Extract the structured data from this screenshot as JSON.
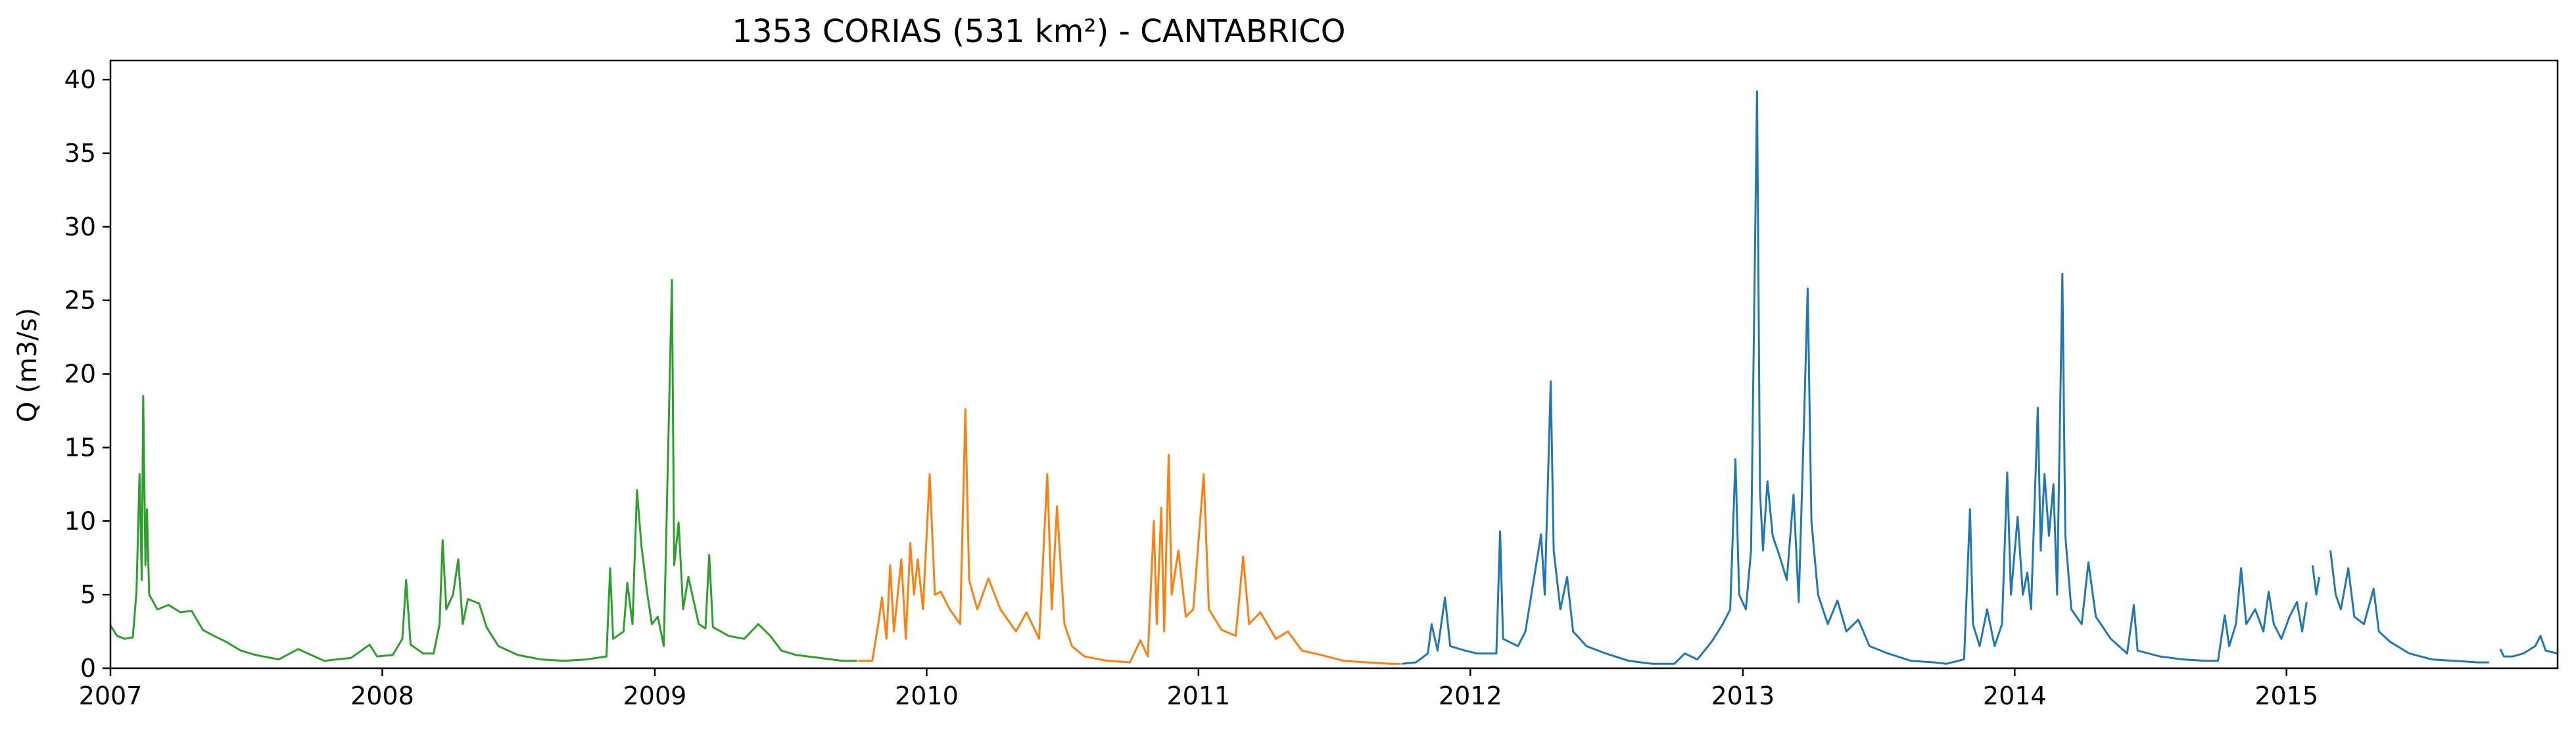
{
  "chart_data": {
    "type": "line",
    "title": "1353 CORIAS (531 km²) - CANTABRICO",
    "xlabel": "",
    "ylabel": "Q (m3/s)",
    "xlim": [
      "2007-01-01",
      "2015-12-31"
    ],
    "ylim": [
      0,
      41.3
    ],
    "x_ticks": [
      "2007",
      "2008",
      "2009",
      "2010",
      "2011",
      "2012",
      "2013",
      "2014",
      "2015"
    ],
    "y_ticks": [
      0,
      5,
      10,
      15,
      20,
      25,
      30,
      35,
      40
    ],
    "grid": false,
    "legend": "none",
    "colors": {
      "green": "#2ca02c",
      "orange": "#ff7f0e",
      "blue": "#1f77b4"
    },
    "series": [
      {
        "color": "green",
        "points": [
          [
            "2007-01-01",
            2.9
          ],
          [
            "2007-01-10",
            2.2
          ],
          [
            "2007-01-20",
            2.0
          ],
          [
            "2007-01-31",
            2.1
          ],
          [
            "2007-02-05",
            5.2
          ],
          [
            "2007-02-09",
            13.2
          ],
          [
            "2007-02-12",
            6.0
          ],
          [
            "2007-02-14",
            18.5
          ],
          [
            "2007-02-17",
            7.0
          ],
          [
            "2007-02-19",
            10.8
          ],
          [
            "2007-02-22",
            5.0
          ],
          [
            "2007-03-05",
            4.0
          ],
          [
            "2007-03-20",
            4.3
          ],
          [
            "2007-04-05",
            3.8
          ],
          [
            "2007-04-20",
            3.9
          ],
          [
            "2007-05-05",
            2.6
          ],
          [
            "2007-05-20",
            2.2
          ],
          [
            "2007-06-05",
            1.8
          ],
          [
            "2007-06-25",
            1.2
          ],
          [
            "2007-07-15",
            0.9
          ],
          [
            "2007-08-15",
            0.6
          ],
          [
            "2007-09-10",
            1.3
          ],
          [
            "2007-10-15",
            0.5
          ],
          [
            "2007-11-20",
            0.7
          ],
          [
            "2007-12-15",
            1.6
          ],
          [
            "2007-12-25",
            0.8
          ],
          [
            "2008-01-15",
            0.9
          ],
          [
            "2008-01-28",
            2.0
          ],
          [
            "2008-02-02",
            6.0
          ],
          [
            "2008-02-08",
            1.6
          ],
          [
            "2008-02-25",
            1.0
          ],
          [
            "2008-03-10",
            1.0
          ],
          [
            "2008-03-18",
            3.0
          ],
          [
            "2008-03-22",
            8.7
          ],
          [
            "2008-03-27",
            4.0
          ],
          [
            "2008-04-05",
            5.0
          ],
          [
            "2008-04-12",
            7.4
          ],
          [
            "2008-04-18",
            3.0
          ],
          [
            "2008-04-25",
            4.7
          ],
          [
            "2008-05-10",
            4.4
          ],
          [
            "2008-05-20",
            2.8
          ],
          [
            "2008-06-05",
            1.5
          ],
          [
            "2008-07-01",
            0.9
          ],
          [
            "2008-08-01",
            0.6
          ],
          [
            "2008-09-01",
            0.5
          ],
          [
            "2008-10-01",
            0.6
          ],
          [
            "2008-10-28",
            0.8
          ],
          [
            "2008-11-02",
            6.8
          ],
          [
            "2008-11-06",
            2.0
          ],
          [
            "2008-11-20",
            2.5
          ],
          [
            "2008-11-25",
            5.8
          ],
          [
            "2008-12-02",
            3.0
          ],
          [
            "2008-12-08",
            12.1
          ],
          [
            "2008-12-14",
            8.3
          ],
          [
            "2008-12-22",
            5.0
          ],
          [
            "2008-12-28",
            3.0
          ],
          [
            "2009-01-05",
            3.5
          ],
          [
            "2009-01-13",
            1.5
          ],
          [
            "2009-01-24",
            26.4
          ],
          [
            "2009-01-27",
            7.0
          ],
          [
            "2009-02-02",
            9.9
          ],
          [
            "2009-02-08",
            4.0
          ],
          [
            "2009-02-15",
            6.2
          ],
          [
            "2009-03-01",
            3.0
          ],
          [
            "2009-03-10",
            2.7
          ],
          [
            "2009-03-15",
            7.7
          ],
          [
            "2009-03-20",
            2.8
          ],
          [
            "2009-04-10",
            2.2
          ],
          [
            "2009-05-01",
            2.0
          ],
          [
            "2009-05-20",
            3.0
          ],
          [
            "2009-06-05",
            2.2
          ],
          [
            "2009-06-20",
            1.2
          ],
          [
            "2009-07-10",
            0.9
          ],
          [
            "2009-08-10",
            0.7
          ],
          [
            "2009-09-10",
            0.5
          ],
          [
            "2009-09-30",
            0.5
          ]
        ]
      },
      {
        "color": "orange",
        "points": [
          [
            "2009-10-01",
            0.5
          ],
          [
            "2009-10-20",
            0.5
          ],
          [
            "2009-10-28",
            3.0
          ],
          [
            "2009-11-02",
            4.8
          ],
          [
            "2009-11-08",
            2.0
          ],
          [
            "2009-11-13",
            7.0
          ],
          [
            "2009-11-18",
            2.5
          ],
          [
            "2009-11-28",
            7.4
          ],
          [
            "2009-12-04",
            2.0
          ],
          [
            "2009-12-10",
            8.5
          ],
          [
            "2009-12-15",
            5.0
          ],
          [
            "2009-12-20",
            7.4
          ],
          [
            "2009-12-27",
            4.0
          ],
          [
            "2010-01-05",
            13.2
          ],
          [
            "2010-01-12",
            5.0
          ],
          [
            "2010-01-20",
            5.2
          ],
          [
            "2010-02-01",
            4.0
          ],
          [
            "2010-02-15",
            3.0
          ],
          [
            "2010-02-22",
            17.6
          ],
          [
            "2010-02-27",
            6.0
          ],
          [
            "2010-03-10",
            4.0
          ],
          [
            "2010-03-25",
            6.1
          ],
          [
            "2010-04-10",
            4.0
          ],
          [
            "2010-05-01",
            2.5
          ],
          [
            "2010-05-15",
            3.8
          ],
          [
            "2010-06-01",
            2.0
          ],
          [
            "2010-06-12",
            13.2
          ],
          [
            "2010-06-18",
            4.0
          ],
          [
            "2010-06-25",
            11.0
          ],
          [
            "2010-07-05",
            3.0
          ],
          [
            "2010-07-15",
            1.5
          ],
          [
            "2010-08-01",
            0.8
          ],
          [
            "2010-09-01",
            0.5
          ],
          [
            "2010-10-01",
            0.4
          ],
          [
            "2010-10-15",
            1.9
          ],
          [
            "2010-10-25",
            0.8
          ],
          [
            "2010-11-02",
            10.0
          ],
          [
            "2010-11-06",
            3.0
          ],
          [
            "2010-11-12",
            10.9
          ],
          [
            "2010-11-16",
            2.5
          ],
          [
            "2010-11-22",
            14.5
          ],
          [
            "2010-11-26",
            5.0
          ],
          [
            "2010-12-05",
            8.0
          ],
          [
            "2010-12-15",
            3.5
          ],
          [
            "2010-12-25",
            4.0
          ],
          [
            "2011-01-08",
            13.2
          ],
          [
            "2011-01-15",
            4.0
          ],
          [
            "2011-02-01",
            2.6
          ],
          [
            "2011-02-20",
            2.2
          ],
          [
            "2011-03-02",
            7.6
          ],
          [
            "2011-03-10",
            3.0
          ],
          [
            "2011-03-25",
            3.8
          ],
          [
            "2011-04-15",
            2.0
          ],
          [
            "2011-05-01",
            2.5
          ],
          [
            "2011-05-20",
            1.2
          ],
          [
            "2011-06-15",
            0.9
          ],
          [
            "2011-07-15",
            0.5
          ],
          [
            "2011-08-15",
            0.4
          ],
          [
            "2011-09-15",
            0.3
          ],
          [
            "2011-09-30",
            0.3
          ]
        ]
      },
      {
        "color": "blue",
        "points": [
          [
            "2011-10-01",
            0.3
          ],
          [
            "2011-10-20",
            0.4
          ],
          [
            "2011-11-05",
            1.0
          ],
          [
            "2011-11-10",
            3.0
          ],
          [
            "2011-11-18",
            1.2
          ],
          [
            "2011-11-28",
            4.8
          ],
          [
            "2011-12-05",
            1.5
          ],
          [
            "2011-12-25",
            1.2
          ],
          [
            "2012-01-10",
            1.0
          ],
          [
            "2012-02-05",
            1.0
          ],
          [
            "2012-02-10",
            9.3
          ],
          [
            "2012-02-14",
            2.0
          ],
          [
            "2012-03-05",
            1.5
          ],
          [
            "2012-03-15",
            2.5
          ],
          [
            "2012-04-05",
            9.1
          ],
          [
            "2012-04-10",
            5.0
          ],
          [
            "2012-04-18",
            19.5
          ],
          [
            "2012-04-22",
            8.0
          ],
          [
            "2012-05-01",
            4.0
          ],
          [
            "2012-05-10",
            6.2
          ],
          [
            "2012-05-18",
            2.5
          ],
          [
            "2012-06-05",
            1.5
          ],
          [
            "2012-07-01",
            1.0
          ],
          [
            "2012-08-01",
            0.5
          ],
          [
            "2012-09-01",
            0.3
          ],
          [
            "2012-10-01",
            0.3
          ],
          [
            "2012-10-15",
            1.0
          ],
          [
            "2012-11-01",
            0.6
          ],
          [
            "2012-11-20",
            1.8
          ],
          [
            "2012-12-05",
            3.0
          ],
          [
            "2012-12-15",
            4.0
          ],
          [
            "2012-12-22",
            14.2
          ],
          [
            "2012-12-27",
            5.0
          ],
          [
            "2013-01-05",
            4.0
          ],
          [
            "2013-01-12",
            8.0
          ],
          [
            "2013-01-20",
            39.2
          ],
          [
            "2013-01-24",
            12.0
          ],
          [
            "2013-01-28",
            8.0
          ],
          [
            "2013-02-03",
            12.7
          ],
          [
            "2013-02-10",
            9.0
          ],
          [
            "2013-02-20",
            7.5
          ],
          [
            "2013-03-01",
            6.0
          ],
          [
            "2013-03-10",
            11.8
          ],
          [
            "2013-03-17",
            4.5
          ],
          [
            "2013-03-24",
            16.5
          ],
          [
            "2013-03-29",
            25.8
          ],
          [
            "2013-04-03",
            10.0
          ],
          [
            "2013-04-12",
            5.0
          ],
          [
            "2013-04-25",
            3.0
          ],
          [
            "2013-05-08",
            4.6
          ],
          [
            "2013-05-20",
            2.5
          ],
          [
            "2013-06-05",
            3.3
          ],
          [
            "2013-06-20",
            1.5
          ],
          [
            "2013-07-15",
            1.0
          ],
          [
            "2013-08-15",
            0.5
          ],
          [
            "2013-09-15",
            0.4
          ],
          [
            "2013-10-01",
            0.3
          ],
          [
            "2013-10-25",
            0.6
          ],
          [
            "2013-11-02",
            10.8
          ],
          [
            "2013-11-06",
            3.0
          ],
          [
            "2013-11-15",
            1.5
          ],
          [
            "2013-11-25",
            4.0
          ],
          [
            "2013-12-05",
            1.5
          ],
          [
            "2013-12-15",
            3.0
          ],
          [
            "2013-12-22",
            13.3
          ],
          [
            "2013-12-27",
            5.0
          ],
          [
            "2014-01-05",
            10.3
          ],
          [
            "2014-01-12",
            5.0
          ],
          [
            "2014-01-18",
            6.5
          ],
          [
            "2014-01-23",
            4.0
          ],
          [
            "2014-02-01",
            17.7
          ],
          [
            "2014-02-05",
            8.0
          ],
          [
            "2014-02-10",
            13.2
          ],
          [
            "2014-02-16",
            9.0
          ],
          [
            "2014-02-22",
            12.5
          ],
          [
            "2014-02-27",
            5.0
          ],
          [
            "2014-03-06",
            26.8
          ],
          [
            "2014-03-10",
            9.0
          ],
          [
            "2014-03-18",
            4.0
          ],
          [
            "2014-04-01",
            3.0
          ],
          [
            "2014-04-10",
            7.2
          ],
          [
            "2014-04-20",
            3.5
          ],
          [
            "2014-05-10",
            2.0
          ],
          [
            "2014-06-01",
            1.0
          ],
          [
            "2014-06-10",
            4.3
          ],
          [
            "2014-06-15",
            1.2
          ],
          [
            "2014-07-15",
            0.8
          ],
          [
            "2014-08-15",
            0.6
          ],
          [
            "2014-09-15",
            0.5
          ],
          [
            "2014-10-01",
            0.5
          ],
          [
            "2014-10-10",
            3.6
          ],
          [
            "2014-10-16",
            1.5
          ],
          [
            "2014-10-25",
            3.0
          ],
          [
            "2014-11-01",
            6.8
          ],
          [
            "2014-11-08",
            3.0
          ],
          [
            "2014-11-20",
            4.0
          ],
          [
            "2014-12-01",
            2.5
          ],
          [
            "2014-12-08",
            5.2
          ],
          [
            "2014-12-15",
            3.0
          ],
          [
            "2014-12-25",
            2.0
          ],
          [
            "2015-01-05",
            3.5
          ],
          [
            "2015-01-15",
            4.5
          ],
          [
            "2015-01-22",
            2.5
          ],
          [
            "2015-01-28",
            4.5
          ],
          null,
          [
            "2015-02-05",
            7.0
          ],
          [
            "2015-02-10",
            5.0
          ],
          [
            "2015-02-14",
            6.2
          ],
          null,
          [
            "2015-03-01",
            8.0
          ],
          [
            "2015-03-08",
            5.0
          ],
          [
            "2015-03-15",
            4.0
          ],
          [
            "2015-03-25",
            6.8
          ],
          [
            "2015-04-02",
            3.5
          ],
          [
            "2015-04-15",
            3.0
          ],
          [
            "2015-04-28",
            5.4
          ],
          [
            "2015-05-05",
            2.5
          ],
          [
            "2015-05-20",
            1.8
          ],
          [
            "2015-06-15",
            1.0
          ],
          [
            "2015-07-15",
            0.6
          ],
          [
            "2015-08-15",
            0.5
          ],
          [
            "2015-09-15",
            0.4
          ],
          [
            "2015-09-30",
            0.4
          ],
          null,
          [
            "2015-10-15",
            1.3
          ],
          [
            "2015-10-20",
            0.8
          ],
          [
            "2015-11-01",
            0.8
          ],
          [
            "2015-11-15",
            1.0
          ],
          [
            "2015-12-01",
            1.5
          ],
          [
            "2015-12-08",
            2.2
          ],
          [
            "2015-12-15",
            1.2
          ],
          [
            "2015-12-31",
            1.0
          ]
        ]
      }
    ]
  }
}
